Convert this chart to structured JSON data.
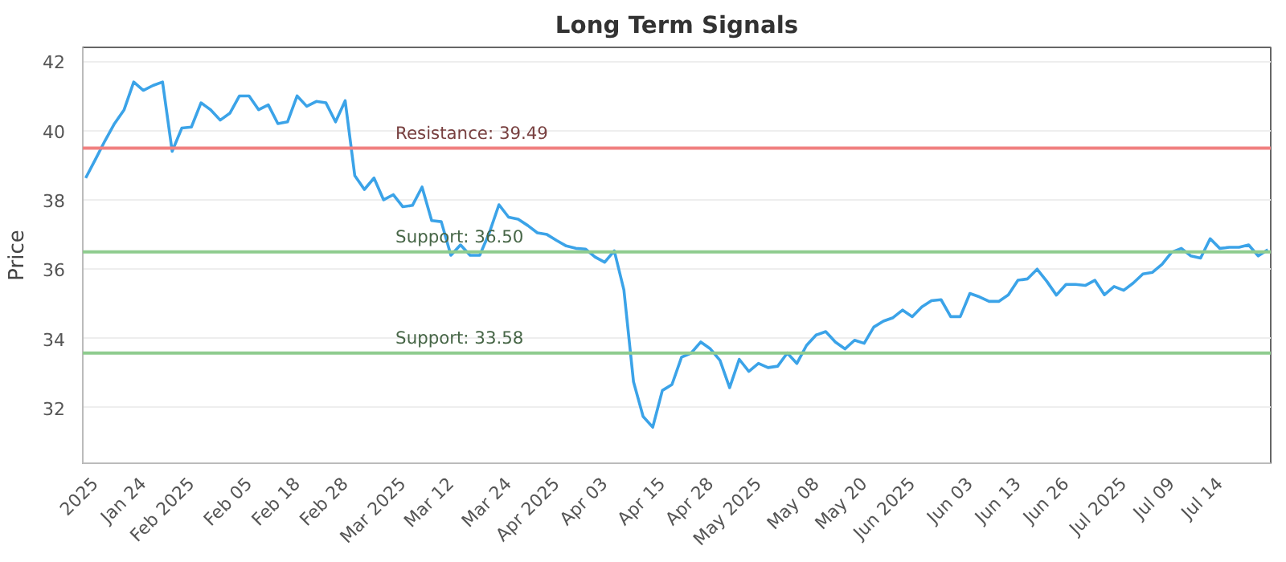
{
  "chart_data": {
    "type": "line",
    "title": "Long Term Signals",
    "ylabel": "Price",
    "categories": [
      null,
      "2025",
      null,
      null,
      null,
      null,
      "Jan 24",
      null,
      null,
      null,
      null,
      "Feb 2025",
      null,
      null,
      null,
      null,
      null,
      "Feb 05",
      null,
      null,
      null,
      null,
      "Feb 18",
      null,
      null,
      null,
      null,
      "Feb 28",
      null,
      null,
      null,
      null,
      null,
      "Mar 2025",
      null,
      null,
      null,
      null,
      "Mar 12",
      null,
      null,
      null,
      null,
      null,
      "Mar 24",
      null,
      null,
      null,
      null,
      "Apr 2025",
      null,
      null,
      null,
      null,
      "Apr 03",
      null,
      null,
      null,
      null,
      null,
      "Apr 15",
      null,
      null,
      null,
      null,
      "Apr 28",
      null,
      null,
      null,
      null,
      "May 2025",
      null,
      null,
      null,
      null,
      null,
      "May 08",
      null,
      null,
      null,
      null,
      "May 20",
      null,
      null,
      null,
      null,
      "Jun 2025",
      null,
      null,
      null,
      null,
      null,
      "Jun 03",
      null,
      null,
      null,
      null,
      "Jun 13",
      null,
      null,
      null,
      null,
      "Jun 26",
      null,
      null,
      null,
      null,
      null,
      "Jul 2025",
      null,
      null,
      null,
      null,
      "Jul 09",
      null,
      null,
      null,
      null,
      "Jul 14",
      null,
      null,
      null,
      null,
      null
    ],
    "series": [
      {
        "color": "#3ba3e8",
        "values": [
          38.63,
          39.16,
          39.7,
          40.2,
          40.6,
          41.4,
          41.16,
          41.3,
          41.4,
          39.4,
          40.07,
          40.1,
          40.8,
          40.6,
          40.3,
          40.5,
          41.0,
          41.0,
          40.6,
          40.74,
          40.2,
          40.25,
          41.0,
          40.7,
          40.84,
          40.8,
          40.25,
          40.86,
          38.7,
          38.3,
          38.63,
          38.0,
          38.15,
          37.8,
          37.84,
          38.37,
          37.4,
          37.37,
          36.4,
          36.7,
          36.4,
          36.4,
          37.05,
          37.86,
          37.5,
          37.44,
          37.26,
          37.05,
          37.0,
          36.83,
          36.67,
          36.6,
          36.58,
          36.35,
          36.2,
          36.53,
          35.4,
          32.75,
          31.75,
          31.44,
          32.5,
          32.67,
          33.46,
          33.58,
          33.9,
          33.7,
          33.37,
          32.58,
          33.4,
          33.05,
          33.28,
          33.16,
          33.2,
          33.58,
          33.28,
          33.8,
          34.1,
          34.2,
          33.9,
          33.7,
          33.95,
          33.86,
          34.33,
          34.5,
          34.6,
          34.82,
          34.63,
          34.91,
          35.09,
          35.12,
          34.63,
          34.63,
          35.3,
          35.2,
          35.07,
          35.07,
          35.26,
          35.68,
          35.72,
          36.0,
          35.65,
          35.25,
          35.56,
          35.56,
          35.53,
          35.68,
          35.26,
          35.5,
          35.39,
          35.6,
          35.86,
          35.91,
          36.14,
          36.49,
          36.6,
          36.38,
          36.32,
          36.88,
          36.6,
          36.63,
          36.63,
          36.7,
          36.38,
          36.56
        ]
      }
    ],
    "ylim": [
      30.4,
      42.4
    ],
    "yticks": [
      32,
      34,
      36,
      38,
      40,
      42
    ],
    "grid": "y",
    "marker": "none",
    "line_style": "solid",
    "ref_lines": [
      {
        "axis": "y",
        "value": 39.49,
        "label": "Resistance: 39.49",
        "color": "#f08080"
      },
      {
        "axis": "y",
        "value": 36.5,
        "label": "Support: 36.50",
        "color": "#8fcc8f"
      },
      {
        "axis": "y",
        "value": 33.58,
        "label": "Support: 33.58",
        "color": "#8fcc8f"
      }
    ]
  }
}
